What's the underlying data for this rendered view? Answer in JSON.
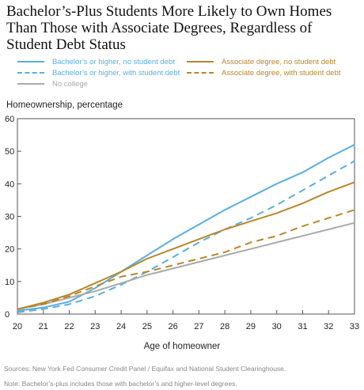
{
  "chart_data": {
    "type": "line",
    "title": "Bachelor’s-Plus Students More Likely to Own Homes Than Those with Associate Degrees, Regardless of Student Debt Status",
    "ylabel": "Homeownership, percentage",
    "xlabel": "Age of homeowner",
    "x": [
      20,
      21,
      22,
      23,
      24,
      25,
      26,
      27,
      28,
      29,
      30,
      31,
      32,
      33
    ],
    "xlim": [
      20,
      33
    ],
    "ylim": [
      0,
      60
    ],
    "yticks": [
      0,
      10,
      20,
      30,
      40,
      50,
      60
    ],
    "grid": false,
    "legend_position": "top",
    "series": [
      {
        "name": "Bachelor’s or higher, no student debt",
        "color": "#5aaee0",
        "dash": "solid",
        "values": [
          1.0,
          2.0,
          3.8,
          8.0,
          13.0,
          18.0,
          23.0,
          27.5,
          32.0,
          36.0,
          40.0,
          43.5,
          48.0,
          52.0
        ]
      },
      {
        "name": "Bachelor’s or higher, with student debt",
        "color": "#5aaee0",
        "dash": "dashed",
        "values": [
          0.5,
          1.5,
          3.0,
          5.5,
          9.0,
          13.0,
          17.5,
          22.0,
          26.0,
          29.5,
          33.5,
          38.0,
          42.5,
          47.0
        ]
      },
      {
        "name": "No college",
        "color": "#aaaaaa",
        "dash": "solid",
        "values": [
          1.5,
          3.0,
          5.0,
          7.0,
          9.5,
          12.0,
          14.0,
          16.0,
          18.0,
          20.0,
          22.0,
          24.0,
          26.0,
          28.0
        ]
      },
      {
        "name": "Associate degree, no student debt",
        "color": "#b8862a",
        "dash": "solid",
        "values": [
          1.5,
          3.5,
          6.0,
          9.5,
          13.0,
          17.0,
          20.0,
          23.0,
          26.0,
          28.5,
          31.0,
          34.0,
          37.5,
          40.5
        ]
      },
      {
        "name": "Associate degree, with student debt",
        "color": "#b8862a",
        "dash": "dashed",
        "values": [
          1.5,
          3.0,
          5.5,
          8.5,
          11.5,
          13.0,
          15.0,
          17.0,
          19.0,
          22.0,
          24.0,
          27.0,
          29.5,
          32.0
        ]
      }
    ]
  },
  "source": "Sources: New York Fed Consumer Credit Panel / Equifax and National Student Clearinghouse.",
  "note": "Note: Bachelor’s-plus includes those with bachelor’s and higher-level degrees."
}
